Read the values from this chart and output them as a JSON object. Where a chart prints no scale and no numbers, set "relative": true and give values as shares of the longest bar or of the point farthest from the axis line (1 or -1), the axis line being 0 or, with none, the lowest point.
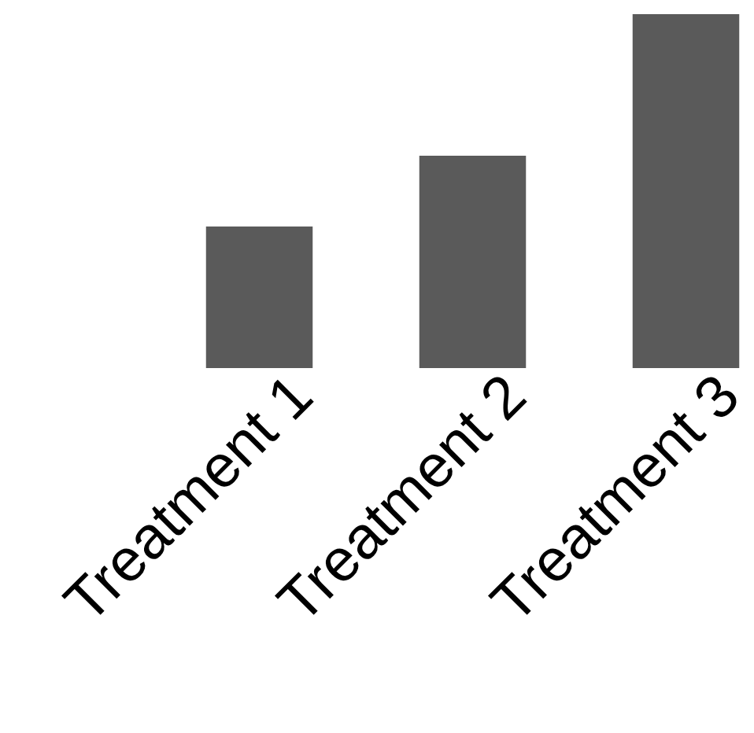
{
  "chart_data": {
    "type": "bar",
    "categories": [
      "Treatment 1",
      "Treatment 2",
      "Treatment 3"
    ],
    "values": [
      0.4,
      0.6,
      1
    ],
    "color": "#5a5a5a",
    "relative": true
  }
}
